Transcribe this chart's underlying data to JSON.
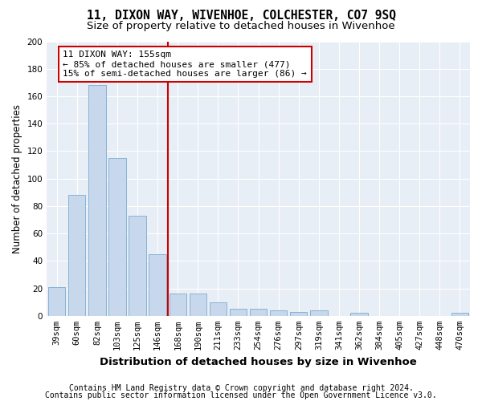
{
  "title": "11, DIXON WAY, WIVENHOE, COLCHESTER, CO7 9SQ",
  "subtitle": "Size of property relative to detached houses in Wivenhoe",
  "xlabel": "Distribution of detached houses by size in Wivenhoe",
  "ylabel": "Number of detached properties",
  "categories": [
    "39sqm",
    "60sqm",
    "82sqm",
    "103sqm",
    "125sqm",
    "146sqm",
    "168sqm",
    "190sqm",
    "211sqm",
    "233sqm",
    "254sqm",
    "276sqm",
    "297sqm",
    "319sqm",
    "341sqm",
    "362sqm",
    "384sqm",
    "405sqm",
    "427sqm",
    "448sqm",
    "470sqm"
  ],
  "values": [
    21,
    88,
    168,
    115,
    73,
    45,
    16,
    16,
    10,
    5,
    5,
    4,
    3,
    4,
    0,
    2,
    0,
    0,
    0,
    0,
    2
  ],
  "bar_color": "#c8d8ec",
  "bar_edge_color": "#7aaad0",
  "vline_x_index": 6,
  "vline_color": "#cc0000",
  "annotation_line1": "11 DIXON WAY: 155sqm",
  "annotation_line2": "← 85% of detached houses are smaller (477)",
  "annotation_line3": "15% of semi-detached houses are larger (86) →",
  "annotation_box_color": "#ffffff",
  "annotation_box_edge": "#cc0000",
  "ylim": [
    0,
    200
  ],
  "yticks": [
    0,
    20,
    40,
    60,
    80,
    100,
    120,
    140,
    160,
    180,
    200
  ],
  "footer1": "Contains HM Land Registry data © Crown copyright and database right 2024.",
  "footer2": "Contains public sector information licensed under the Open Government Licence v3.0.",
  "bg_color": "#ffffff",
  "plot_bg_color": "#e8eef5",
  "title_fontsize": 10.5,
  "subtitle_fontsize": 9.5,
  "axis_label_fontsize": 8.5,
  "tick_fontsize": 7.5,
  "annotation_fontsize": 8,
  "footer_fontsize": 7
}
